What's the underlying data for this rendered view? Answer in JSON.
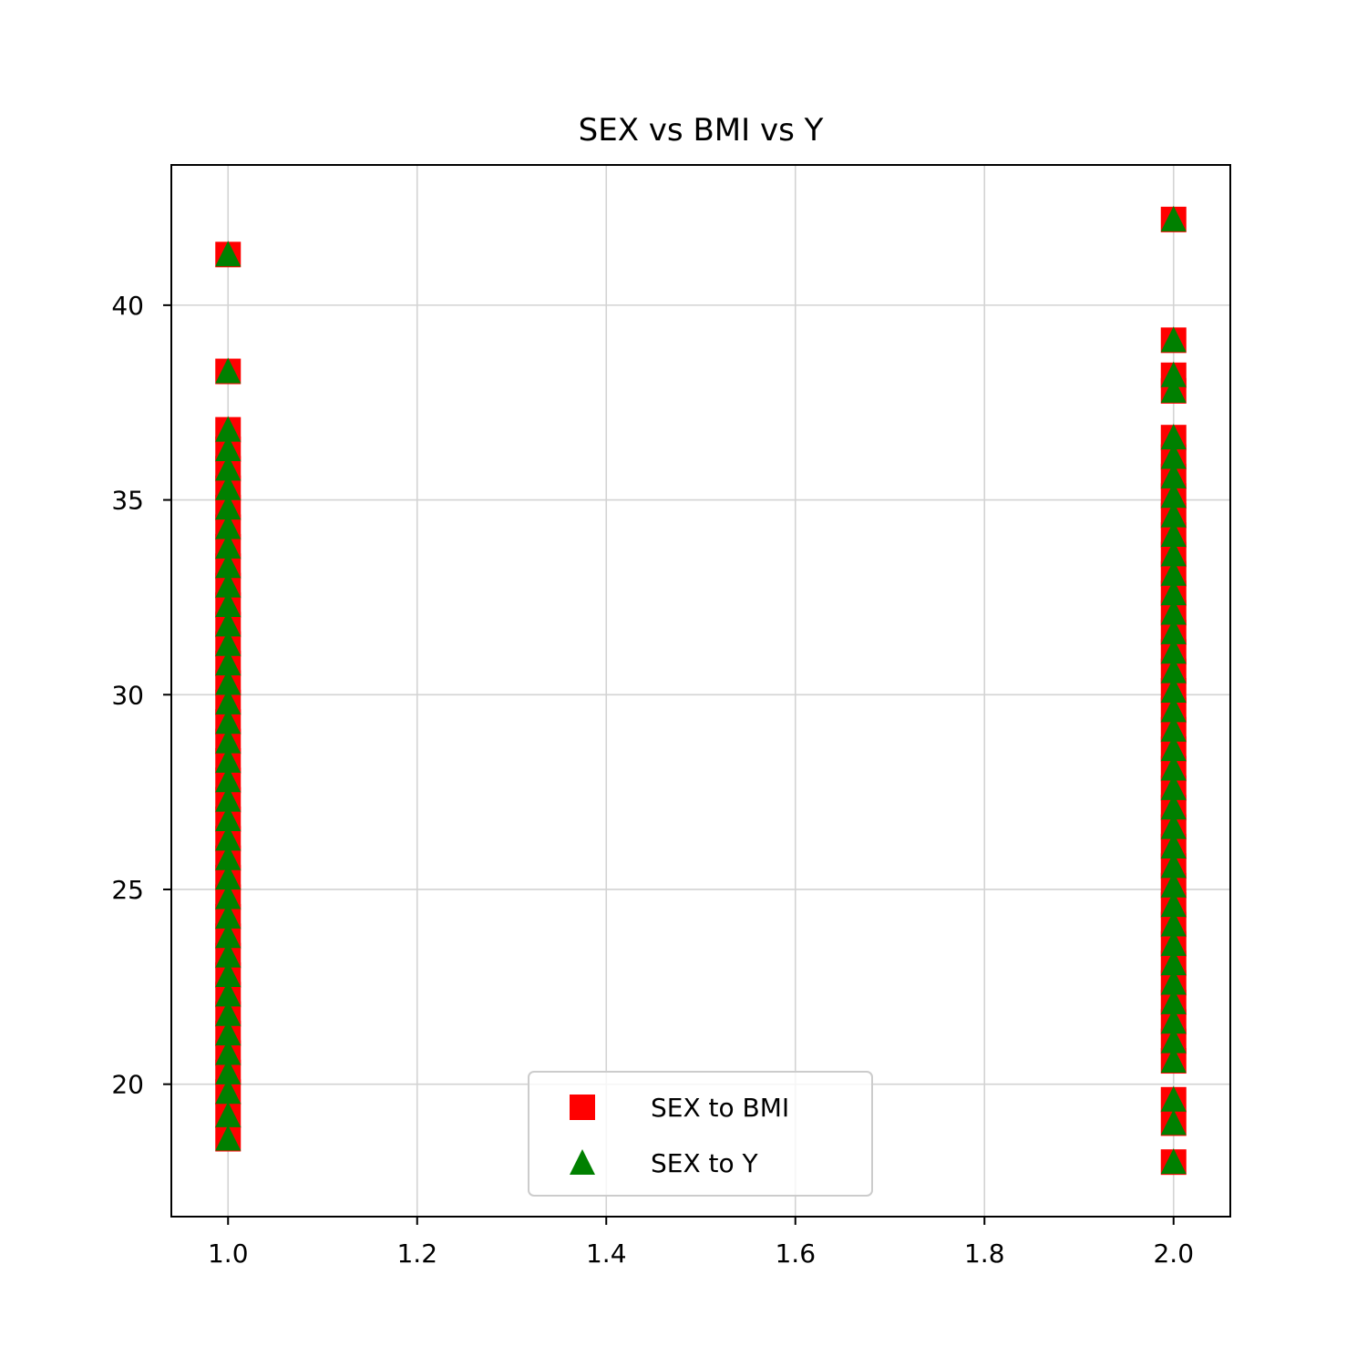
{
  "chart_data": {
    "type": "scatter",
    "title": "SEX vs BMI vs Y",
    "xlabel": "",
    "ylabel": "",
    "xlim": [
      0.94,
      2.06
    ],
    "ylim": [
      16.6,
      43.6
    ],
    "xticks": [
      1.0,
      1.2,
      1.4,
      1.6,
      1.8,
      2.0
    ],
    "xtick_labels": [
      "1.0",
      "1.2",
      "1.4",
      "1.6",
      "1.8",
      "2.0"
    ],
    "yticks": [
      20,
      25,
      30,
      35,
      40
    ],
    "ytick_labels": [
      "20",
      "25",
      "30",
      "35",
      "40"
    ],
    "grid": true,
    "legend": {
      "placement": "lower center"
    },
    "series": [
      {
        "name": "SEX to BMI",
        "marker": "square",
        "color": "#ff0000",
        "points": [
          [
            1,
            18.6
          ],
          [
            1,
            19.2
          ],
          [
            1,
            19.8
          ],
          [
            1,
            20.3
          ],
          [
            1,
            20.8
          ],
          [
            1,
            21.3
          ],
          [
            1,
            21.8
          ],
          [
            1,
            22.3
          ],
          [
            1,
            22.8
          ],
          [
            1,
            23.3
          ],
          [
            1,
            23.8
          ],
          [
            1,
            24.3
          ],
          [
            1,
            24.8
          ],
          [
            1,
            25.3
          ],
          [
            1,
            25.8
          ],
          [
            1,
            26.3
          ],
          [
            1,
            26.8
          ],
          [
            1,
            27.3
          ],
          [
            1,
            27.8
          ],
          [
            1,
            28.3
          ],
          [
            1,
            28.8
          ],
          [
            1,
            29.3
          ],
          [
            1,
            29.8
          ],
          [
            1,
            30.3
          ],
          [
            1,
            30.8
          ],
          [
            1,
            31.3
          ],
          [
            1,
            31.8
          ],
          [
            1,
            32.3
          ],
          [
            1,
            32.8
          ],
          [
            1,
            33.3
          ],
          [
            1,
            33.8
          ],
          [
            1,
            34.3
          ],
          [
            1,
            34.8
          ],
          [
            1,
            35.3
          ],
          [
            1,
            35.8
          ],
          [
            1,
            36.3
          ],
          [
            1,
            36.8
          ],
          [
            1,
            38.3
          ],
          [
            1,
            41.3
          ],
          [
            2,
            18.0
          ],
          [
            2,
            19.0
          ],
          [
            2,
            19.6
          ],
          [
            2,
            20.6
          ],
          [
            2,
            21.1
          ],
          [
            2,
            21.6
          ],
          [
            2,
            22.1
          ],
          [
            2,
            22.6
          ],
          [
            2,
            23.1
          ],
          [
            2,
            23.6
          ],
          [
            2,
            24.1
          ],
          [
            2,
            24.6
          ],
          [
            2,
            25.1
          ],
          [
            2,
            25.6
          ],
          [
            2,
            26.1
          ],
          [
            2,
            26.6
          ],
          [
            2,
            27.1
          ],
          [
            2,
            27.6
          ],
          [
            2,
            28.1
          ],
          [
            2,
            28.6
          ],
          [
            2,
            29.1
          ],
          [
            2,
            29.6
          ],
          [
            2,
            30.1
          ],
          [
            2,
            30.6
          ],
          [
            2,
            31.1
          ],
          [
            2,
            31.6
          ],
          [
            2,
            32.1
          ],
          [
            2,
            32.6
          ],
          [
            2,
            33.1
          ],
          [
            2,
            33.6
          ],
          [
            2,
            34.1
          ],
          [
            2,
            34.6
          ],
          [
            2,
            35.1
          ],
          [
            2,
            35.6
          ],
          [
            2,
            36.1
          ],
          [
            2,
            36.6
          ],
          [
            2,
            37.8
          ],
          [
            2,
            38.2
          ],
          [
            2,
            39.1
          ],
          [
            2,
            42.2
          ]
        ]
      },
      {
        "name": "SEX to Y",
        "marker": "triangle",
        "color": "#008000",
        "points": [
          [
            1,
            18.6
          ],
          [
            1,
            19.2
          ],
          [
            1,
            19.8
          ],
          [
            1,
            20.3
          ],
          [
            1,
            20.8
          ],
          [
            1,
            21.3
          ],
          [
            1,
            21.8
          ],
          [
            1,
            22.3
          ],
          [
            1,
            22.8
          ],
          [
            1,
            23.3
          ],
          [
            1,
            23.8
          ],
          [
            1,
            24.3
          ],
          [
            1,
            24.8
          ],
          [
            1,
            25.3
          ],
          [
            1,
            25.8
          ],
          [
            1,
            26.3
          ],
          [
            1,
            26.8
          ],
          [
            1,
            27.3
          ],
          [
            1,
            27.8
          ],
          [
            1,
            28.3
          ],
          [
            1,
            28.8
          ],
          [
            1,
            29.3
          ],
          [
            1,
            29.8
          ],
          [
            1,
            30.3
          ],
          [
            1,
            30.8
          ],
          [
            1,
            31.3
          ],
          [
            1,
            31.8
          ],
          [
            1,
            32.3
          ],
          [
            1,
            32.8
          ],
          [
            1,
            33.3
          ],
          [
            1,
            33.8
          ],
          [
            1,
            34.3
          ],
          [
            1,
            34.8
          ],
          [
            1,
            35.3
          ],
          [
            1,
            35.8
          ],
          [
            1,
            36.3
          ],
          [
            1,
            36.8
          ],
          [
            1,
            38.3
          ],
          [
            1,
            41.3
          ],
          [
            2,
            18.0
          ],
          [
            2,
            19.0
          ],
          [
            2,
            19.6
          ],
          [
            2,
            20.6
          ],
          [
            2,
            21.1
          ],
          [
            2,
            21.6
          ],
          [
            2,
            22.1
          ],
          [
            2,
            22.6
          ],
          [
            2,
            23.1
          ],
          [
            2,
            23.6
          ],
          [
            2,
            24.1
          ],
          [
            2,
            24.6
          ],
          [
            2,
            25.1
          ],
          [
            2,
            25.6
          ],
          [
            2,
            26.1
          ],
          [
            2,
            26.6
          ],
          [
            2,
            27.1
          ],
          [
            2,
            27.6
          ],
          [
            2,
            28.1
          ],
          [
            2,
            28.6
          ],
          [
            2,
            29.1
          ],
          [
            2,
            29.6
          ],
          [
            2,
            30.1
          ],
          [
            2,
            30.6
          ],
          [
            2,
            31.1
          ],
          [
            2,
            31.6
          ],
          [
            2,
            32.1
          ],
          [
            2,
            32.6
          ],
          [
            2,
            33.1
          ],
          [
            2,
            33.6
          ],
          [
            2,
            34.1
          ],
          [
            2,
            34.6
          ],
          [
            2,
            35.1
          ],
          [
            2,
            35.6
          ],
          [
            2,
            36.1
          ],
          [
            2,
            36.6
          ],
          [
            2,
            37.8
          ],
          [
            2,
            38.2
          ],
          [
            2,
            39.1
          ],
          [
            2,
            42.2
          ]
        ]
      }
    ]
  }
}
